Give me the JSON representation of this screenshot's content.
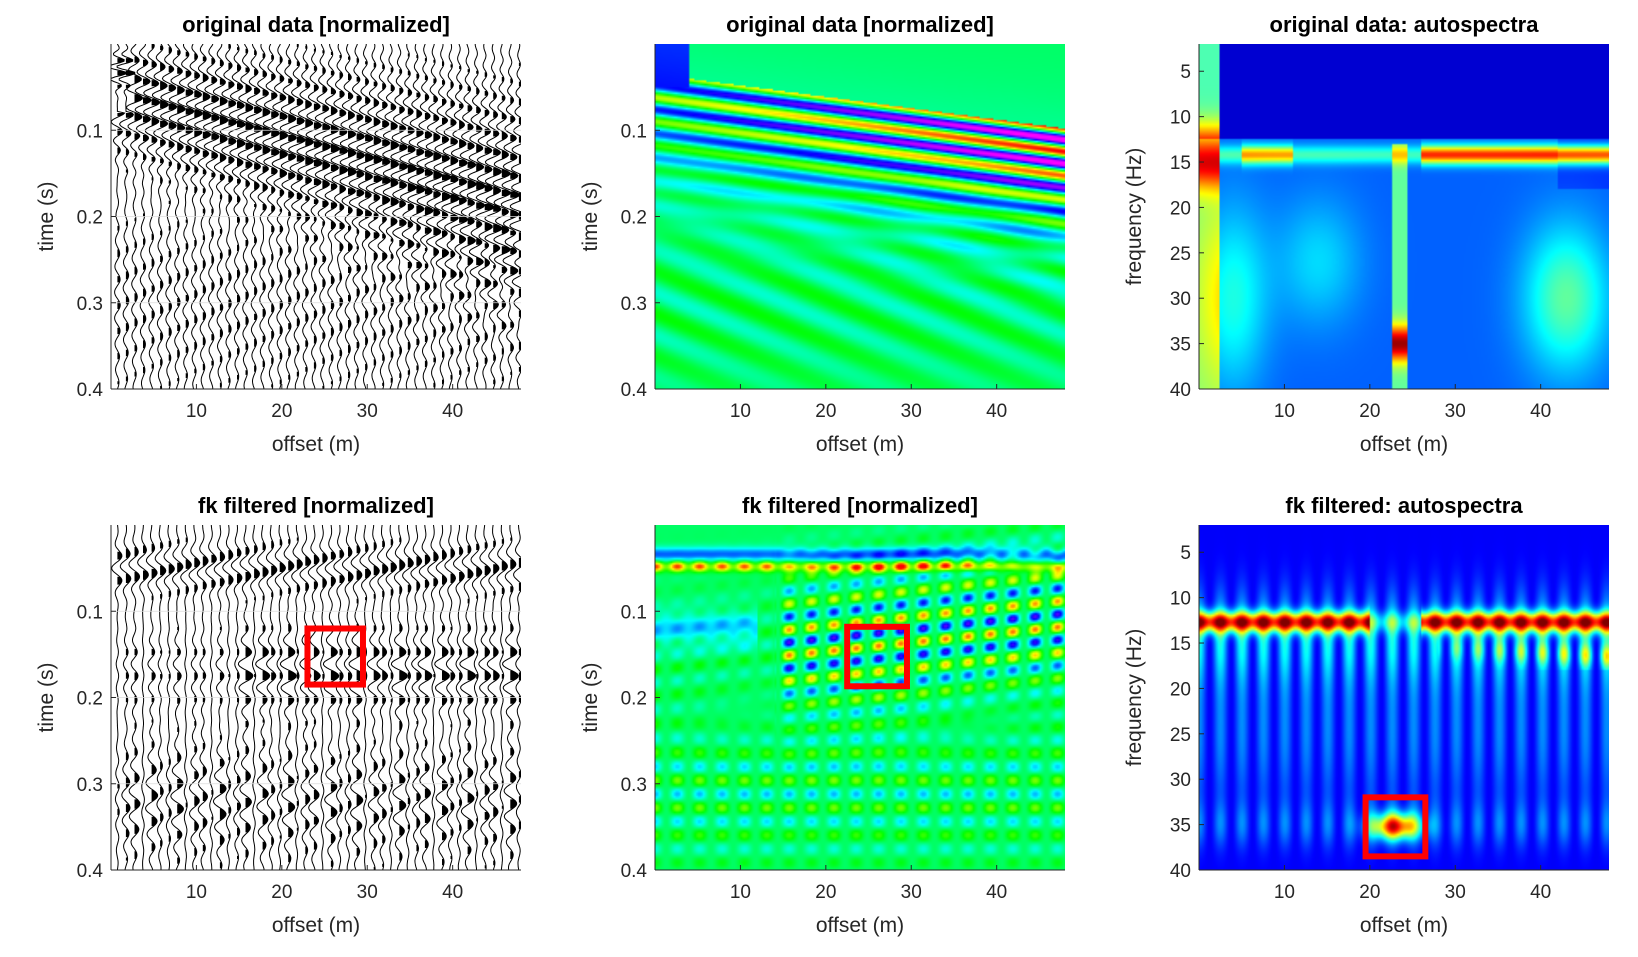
{
  "chart_data": [
    {
      "type": "wiggle",
      "title": "original data [normalized]",
      "xlabel": "offset (m)",
      "ylabel": "time (s)",
      "xlim": [
        0,
        48
      ],
      "ylim": [
        0.4,
        0
      ],
      "xticks": [
        10,
        20,
        30,
        40
      ],
      "yticks": [
        0.1,
        0.2,
        0.3,
        0.4
      ],
      "ytick_labels": [
        "0.1",
        "0.2",
        "0.3",
        "0.4"
      ],
      "traces": 48,
      "arrival_start_s": 0.03,
      "arrival_end_s": 0.15,
      "highlight": null
    },
    {
      "type": "heatmap",
      "title": "original data [normalized]",
      "xlabel": "offset (m)",
      "ylabel": "time (s)",
      "xlim": [
        0,
        48
      ],
      "ylim": [
        0.4,
        0
      ],
      "xticks": [
        10,
        20,
        30,
        40
      ],
      "yticks": [
        0.1,
        0.2,
        0.3,
        0.4
      ],
      "ytick_labels": [
        "0.1",
        "0.2",
        "0.3",
        "0.4"
      ],
      "colormap": "hsv",
      "highlight": null
    },
    {
      "type": "heatmap",
      "title": "original data: autospectra",
      "xlabel": "offset (m)",
      "ylabel": "frequency (Hz)",
      "xlim": [
        0,
        48
      ],
      "ylim": [
        40,
        2
      ],
      "xticks": [
        10,
        20,
        30,
        40
      ],
      "yticks": [
        5,
        10,
        15,
        20,
        25,
        30,
        35,
        40
      ],
      "ytick_labels": [
        "5",
        "10",
        "15",
        "20",
        "25",
        "30",
        "35",
        "40"
      ],
      "colormap": "jet",
      "highlight": null
    },
    {
      "type": "wiggle",
      "title": "fk filtered [normalized]",
      "xlabel": "offset (m)",
      "ylabel": "time (s)",
      "xlim": [
        0,
        48
      ],
      "ylim": [
        0.4,
        0
      ],
      "xticks": [
        10,
        20,
        30,
        40
      ],
      "yticks": [
        0.1,
        0.2,
        0.3,
        0.4
      ],
      "ytick_labels": [
        "0.1",
        "0.2",
        "0.3",
        "0.4"
      ],
      "traces": 48,
      "arrival_start_s": 0.03,
      "arrival_end_s": 0.15,
      "highlight": {
        "x": [
          23,
          29.5
        ],
        "y": [
          0.12,
          0.185
        ],
        "color": "#ff0000"
      }
    },
    {
      "type": "heatmap",
      "title": "fk filtered [normalized]",
      "xlabel": "offset (m)",
      "ylabel": "time (s)",
      "xlim": [
        0,
        48
      ],
      "ylim": [
        0.4,
        0
      ],
      "xticks": [
        10,
        20,
        30,
        40
      ],
      "yticks": [
        0.1,
        0.2,
        0.3,
        0.4
      ],
      "ytick_labels": [
        "0.1",
        "0.2",
        "0.3",
        "0.4"
      ],
      "colormap": "hsv",
      "highlight": {
        "x": [
          22.5,
          29.5
        ],
        "y": [
          0.118,
          0.187
        ],
        "color": "#ff0000"
      }
    },
    {
      "type": "heatmap",
      "title": "fk filtered: autospectra",
      "xlabel": "offset (m)",
      "ylabel": "frequency (Hz)",
      "xlim": [
        0,
        48
      ],
      "ylim": [
        40,
        2
      ],
      "xticks": [
        10,
        20,
        30,
        40
      ],
      "yticks": [
        5,
        10,
        15,
        20,
        25,
        30,
        35,
        40
      ],
      "ytick_labels": [
        "5",
        "10",
        "15",
        "20",
        "25",
        "30",
        "35",
        "40"
      ],
      "colormap": "jet",
      "highlight": {
        "x": [
          19.5,
          26.5
        ],
        "y": [
          32,
          38.5
        ],
        "color": "#ff0000"
      }
    }
  ]
}
